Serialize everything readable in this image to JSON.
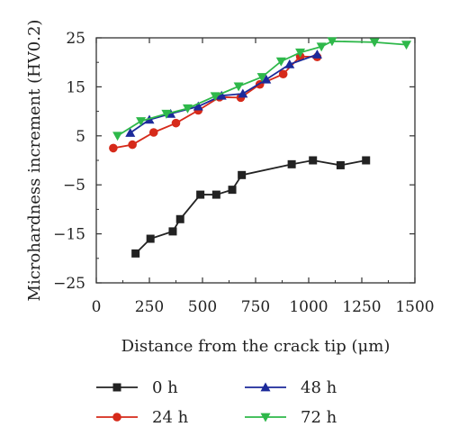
{
  "chart_data": {
    "type": "line",
    "title": "",
    "xlabel": "Distance from the crack tip (μm)",
    "ylabel": "Microhardness increment (HV0.2)",
    "xlim": [
      0,
      1500
    ],
    "ylim": [
      -25,
      25
    ],
    "xticks": [
      0,
      250,
      500,
      750,
      1000,
      1250,
      1500
    ],
    "yticks": [
      -25,
      -15,
      -5,
      5,
      15,
      25
    ],
    "grid": false,
    "legend_position": "bottom",
    "series": [
      {
        "name": "0 h",
        "color": "#222222",
        "marker": "square",
        "x": [
          185,
          255,
          360,
          395,
          490,
          565,
          640,
          685,
          920,
          1020,
          1150,
          1270
        ],
        "y": [
          -19,
          -16,
          -14.5,
          -12,
          -7,
          -7,
          -6,
          -3,
          -0.8,
          0,
          -1,
          0
        ]
      },
      {
        "name": "24 h",
        "color": "#d62a1a",
        "marker": "circle",
        "x": [
          80,
          170,
          270,
          375,
          480,
          580,
          680,
          770,
          880,
          960,
          1040
        ],
        "y": [
          2.5,
          3.2,
          5.7,
          7.6,
          10.2,
          12.9,
          12.8,
          15.5,
          17.6,
          21.2,
          21.1
        ]
      },
      {
        "name": "48 h",
        "color": "#1c2a9a",
        "marker": "triangle-up",
        "x": [
          160,
          250,
          350,
          480,
          590,
          690,
          800,
          910,
          1040
        ],
        "y": [
          5.6,
          8.3,
          9.5,
          11.0,
          13.2,
          13.6,
          16.5,
          19.6,
          21.6
        ]
      },
      {
        "name": "72 h",
        "color": "#2eb84a",
        "marker": "triangle-down",
        "x": [
          100,
          210,
          330,
          430,
          560,
          670,
          780,
          870,
          960,
          1060,
          1110,
          1310,
          1460
        ],
        "y": [
          5.0,
          8.0,
          9.5,
          10.6,
          13.1,
          15.1,
          17.0,
          20.2,
          22.0,
          23.2,
          24.3,
          24.1,
          23.6
        ]
      }
    ]
  }
}
